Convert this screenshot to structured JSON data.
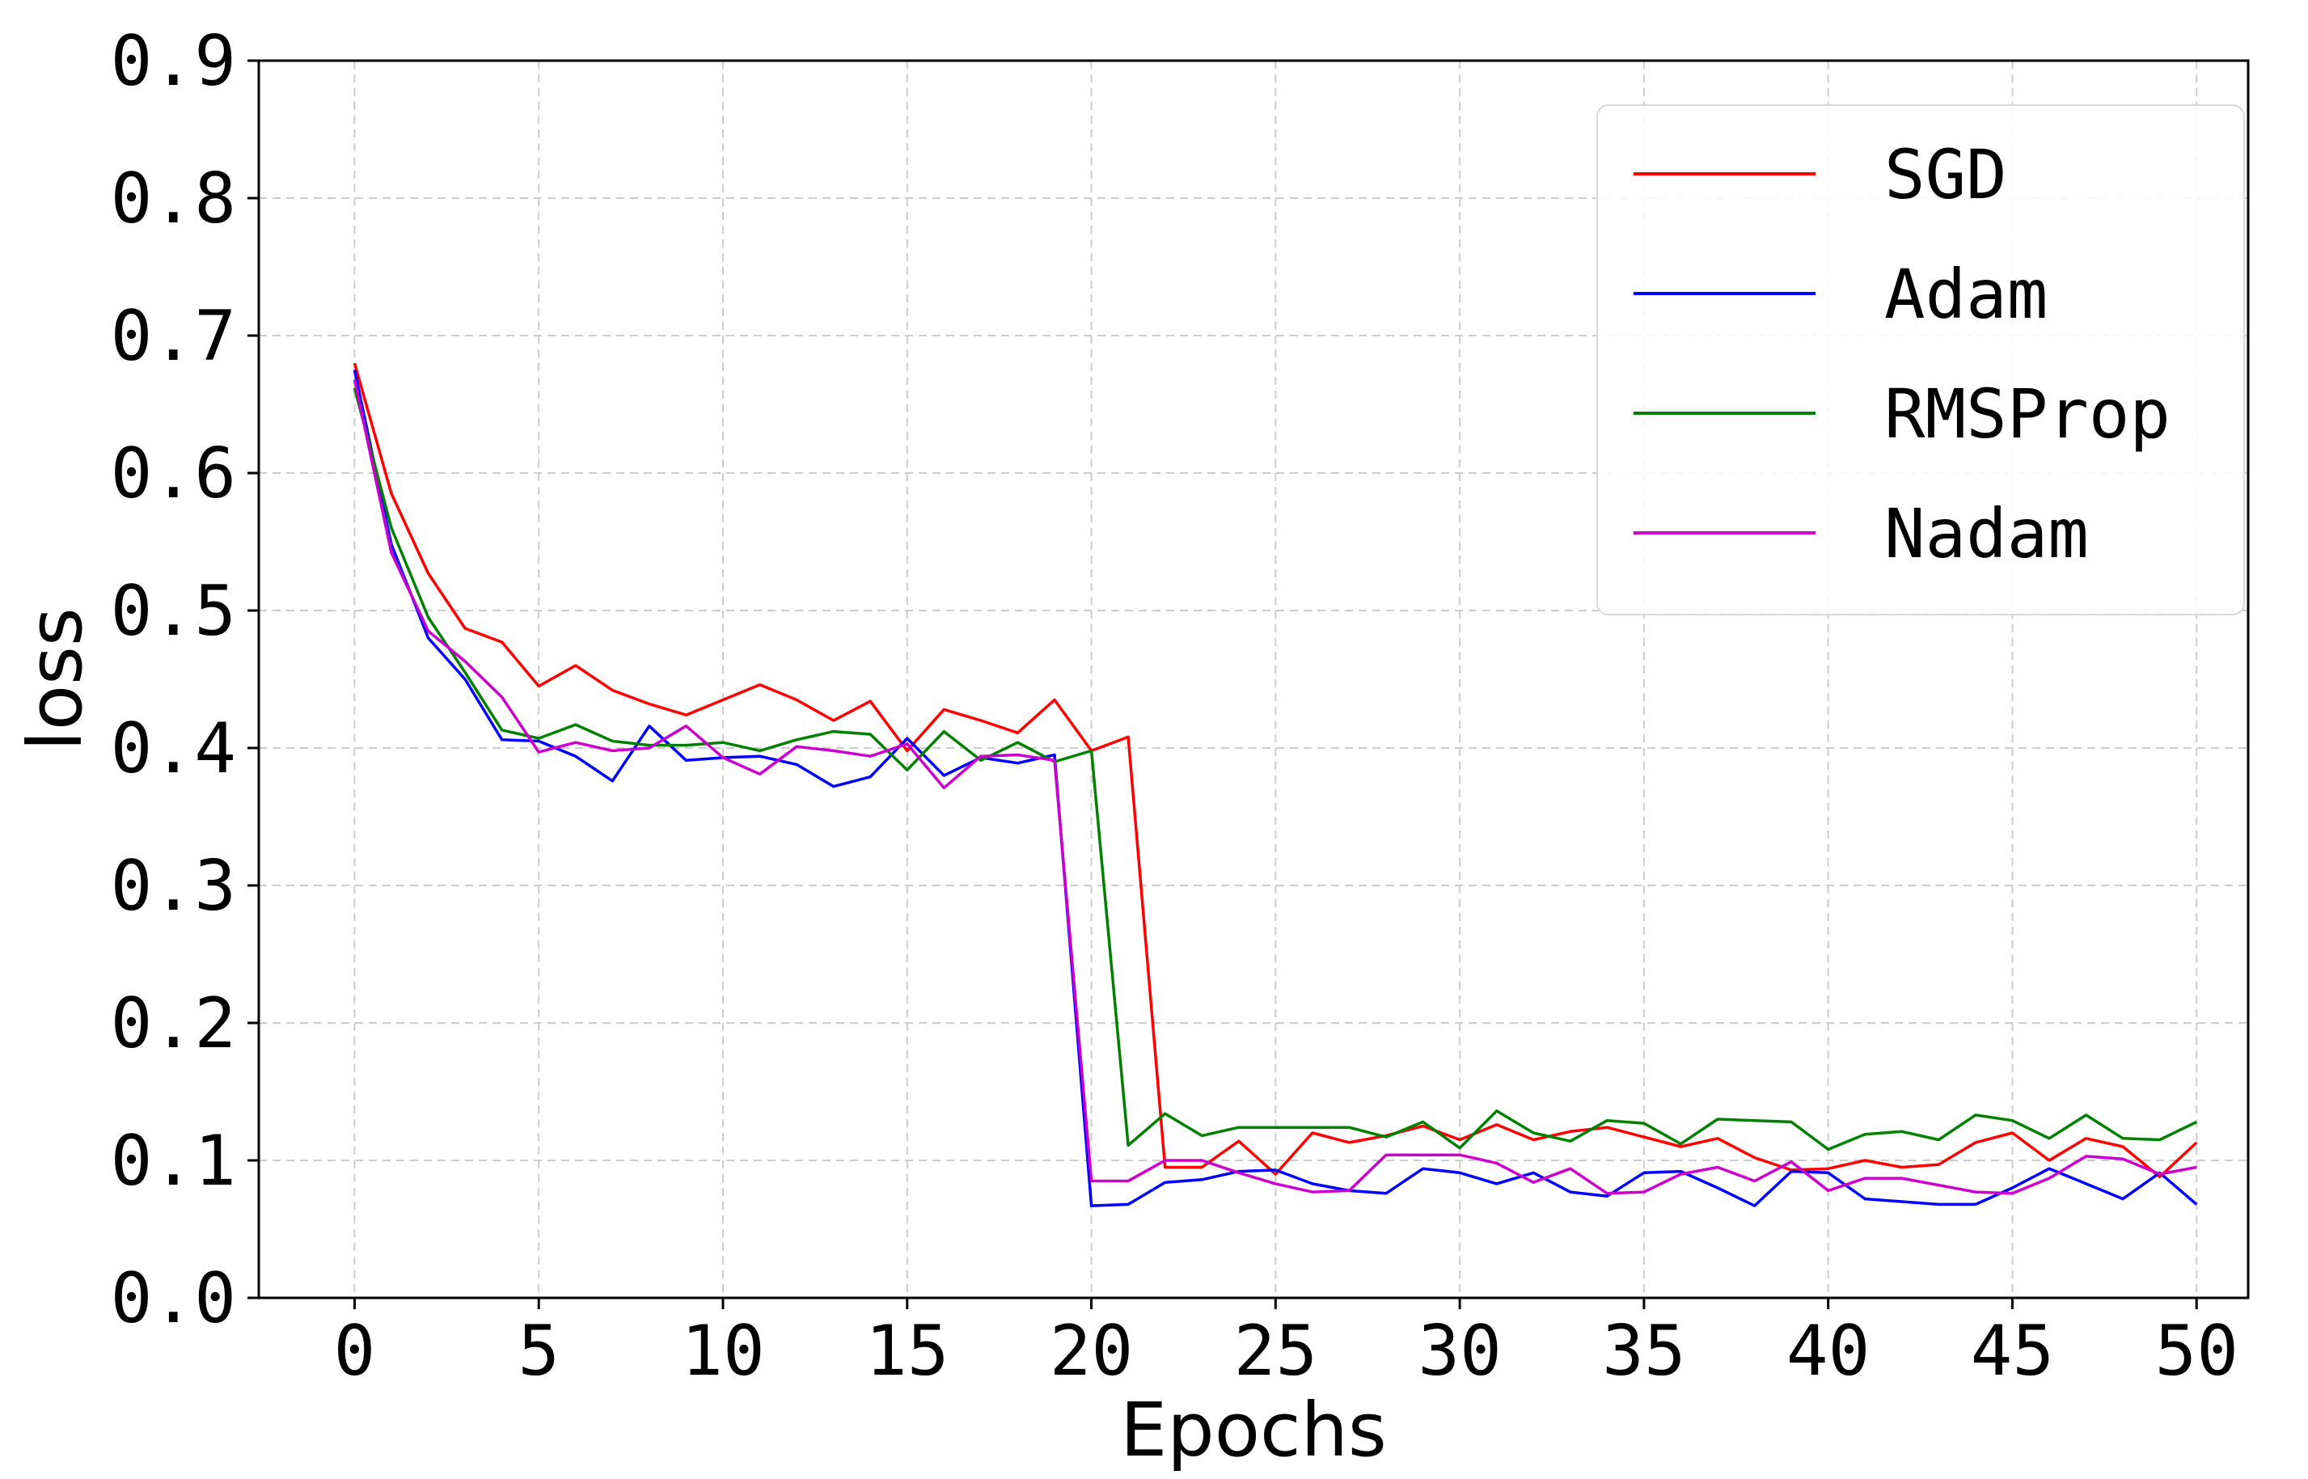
{
  "chart_data": {
    "type": "line",
    "title": "",
    "xlabel": "Epochs",
    "ylabel": "loss",
    "xlim": [
      -2.6,
      51.4
    ],
    "ylim": [
      0.0,
      0.9
    ],
    "xticks": [
      0,
      5,
      10,
      15,
      20,
      25,
      30,
      35,
      40,
      45,
      50
    ],
    "yticks": [
      0.0,
      0.1,
      0.2,
      0.3,
      0.4,
      0.5,
      0.6,
      0.7,
      0.8,
      0.9
    ],
    "ytick_labels": [
      "0.0",
      "0.1",
      "0.2",
      "0.3",
      "0.4",
      "0.5",
      "0.6",
      "0.7",
      "0.8",
      "0.9"
    ],
    "grid": true,
    "legend_position": "top-right",
    "x": [
      0,
      1,
      2,
      3,
      4,
      5,
      6,
      7,
      8,
      9,
      10,
      11,
      12,
      13,
      14,
      15,
      16,
      17,
      18,
      19,
      20,
      21,
      22,
      23,
      24,
      25,
      26,
      27,
      28,
      29,
      30,
      31,
      32,
      33,
      34,
      35,
      36,
      37,
      38,
      39,
      40,
      41,
      42,
      43,
      44,
      45,
      46,
      47,
      48,
      49,
      50
    ],
    "series": [
      {
        "name": "SGD",
        "color": "#ff0000",
        "values": [
          0.68,
          0.585,
          0.527,
          0.487,
          0.477,
          0.445,
          0.46,
          0.442,
          0.432,
          0.424,
          0.435,
          0.446,
          0.435,
          0.42,
          0.434,
          0.398,
          0.428,
          0.42,
          0.411,
          0.435,
          0.398,
          0.408,
          0.095,
          0.095,
          0.114,
          0.09,
          0.12,
          0.113,
          0.118,
          0.125,
          0.115,
          0.126,
          0.115,
          0.121,
          0.124,
          0.117,
          0.11,
          0.116,
          0.102,
          0.093,
          0.094,
          0.1,
          0.095,
          0.097,
          0.113,
          0.12,
          0.1,
          0.116,
          0.11,
          0.088,
          0.113
        ]
      },
      {
        "name": "Adam",
        "color": "#0000ff",
        "values": [
          0.675,
          0.548,
          0.48,
          0.45,
          0.406,
          0.405,
          0.394,
          0.376,
          0.416,
          0.391,
          0.393,
          0.394,
          0.388,
          0.372,
          0.379,
          0.407,
          0.38,
          0.393,
          0.389,
          0.395,
          0.067,
          0.068,
          0.084,
          0.086,
          0.092,
          0.093,
          0.083,
          0.078,
          0.076,
          0.094,
          0.091,
          0.083,
          0.091,
          0.077,
          0.074,
          0.091,
          0.092,
          0.08,
          0.067,
          0.092,
          0.091,
          0.072,
          0.07,
          0.068,
          0.068,
          0.08,
          0.094,
          0.083,
          0.072,
          0.091,
          0.068
        ]
      },
      {
        "name": "RMSProp",
        "color": "#008000",
        "values": [
          0.662,
          0.56,
          0.495,
          0.455,
          0.413,
          0.407,
          0.417,
          0.405,
          0.402,
          0.402,
          0.404,
          0.398,
          0.406,
          0.412,
          0.41,
          0.384,
          0.412,
          0.391,
          0.404,
          0.39,
          0.398,
          0.111,
          0.134,
          0.118,
          0.124,
          0.124,
          0.124,
          0.124,
          0.117,
          0.128,
          0.109,
          0.136,
          0.12,
          0.114,
          0.129,
          0.127,
          0.112,
          0.13,
          0.129,
          0.128,
          0.108,
          0.119,
          0.121,
          0.115,
          0.133,
          0.129,
          0.116,
          0.133,
          0.116,
          0.115,
          0.128
        ]
      },
      {
        "name": "Nadam",
        "color": "#cc00cc",
        "values": [
          0.668,
          0.542,
          0.485,
          0.463,
          0.437,
          0.397,
          0.404,
          0.398,
          0.4,
          0.416,
          0.393,
          0.381,
          0.401,
          0.398,
          0.394,
          0.403,
          0.371,
          0.394,
          0.395,
          0.391,
          0.085,
          0.085,
          0.1,
          0.1,
          0.091,
          0.083,
          0.077,
          0.078,
          0.104,
          0.104,
          0.104,
          0.098,
          0.084,
          0.094,
          0.076,
          0.077,
          0.09,
          0.095,
          0.085,
          0.099,
          0.078,
          0.087,
          0.087,
          0.082,
          0.077,
          0.076,
          0.087,
          0.103,
          0.101,
          0.09,
          0.095
        ]
      }
    ]
  }
}
